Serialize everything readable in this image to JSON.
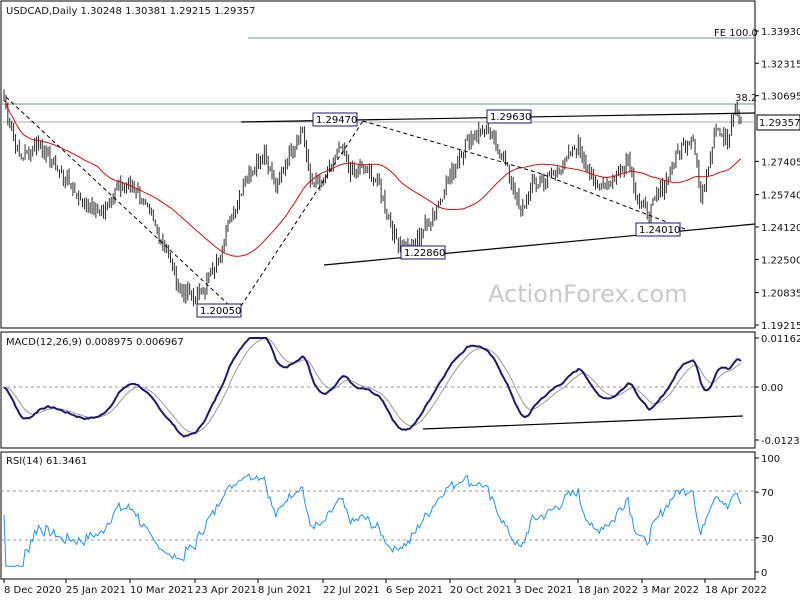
{
  "chart_data": {
    "type": "candlestick",
    "symbol": "USDCAD",
    "timeframe": "Daily",
    "header": "USDCAD,Daily  1.30248 1.30381 1.29215 1.29357",
    "watermark": "ActionForex.com",
    "x_ticks": [
      "8 Dec 2020",
      "25 Jan 2021",
      "10 Mar 2021",
      "23 Apr 2021",
      "8 Jun 2021",
      "22 Jul 2021",
      "6 Sep 2021",
      "20 Oct 2021",
      "3 Dec 2021",
      "18 Jan 2022",
      "3 Mar 2022",
      "18 Apr 2022"
    ],
    "price_panel": {
      "y_ticks": [
        "1.33930",
        "1.32315",
        "1.30695",
        "1.27405",
        "1.25740",
        "1.24120",
        "1.22500",
        "1.20835",
        "1.19215"
      ],
      "current_price": "1.29357",
      "fib_label": "FE 100.0",
      "fib_level": 1.3393,
      "fib_38_label": "38.2",
      "fib_38_level": 1.2995,
      "price_line": 1.2936,
      "annotations": [
        {
          "label": "1.20050",
          "value": 1.2005,
          "date": "Apr 2021"
        },
        {
          "label": "1.29470",
          "value": 1.2947,
          "date": "Jun 2021"
        },
        {
          "label": "1.22860",
          "value": 1.2286,
          "date": "Oct 2021"
        },
        {
          "label": "1.29630",
          "value": 1.2963,
          "date": "Nov 2021"
        },
        {
          "label": "1.24010",
          "value": 1.2401,
          "date": "Mar 2022"
        }
      ],
      "close_anchors": [
        [
          0,
          1.305
        ],
        [
          8,
          1.276
        ],
        [
          18,
          1.283
        ],
        [
          30,
          1.268
        ],
        [
          42,
          1.253
        ],
        [
          50,
          1.248
        ],
        [
          60,
          1.261
        ],
        [
          68,
          1.262
        ],
        [
          76,
          1.247
        ],
        [
          84,
          1.232
        ],
        [
          92,
          1.21
        ],
        [
          100,
          1.205
        ],
        [
          110,
          1.22
        ],
        [
          116,
          1.239
        ],
        [
          126,
          1.265
        ],
        [
          136,
          1.28
        ],
        [
          142,
          1.26
        ],
        [
          150,
          1.28
        ],
        [
          156,
          1.29
        ],
        [
          160,
          1.264
        ],
        [
          166,
          1.262
        ],
        [
          176,
          1.281
        ],
        [
          182,
          1.268
        ],
        [
          188,
          1.271
        ],
        [
          196,
          1.262
        ],
        [
          204,
          1.236
        ],
        [
          212,
          1.23
        ],
        [
          222,
          1.244
        ],
        [
          230,
          1.26
        ],
        [
          242,
          1.285
        ],
        [
          250,
          1.29
        ],
        [
          258,
          1.282
        ],
        [
          264,
          1.267
        ],
        [
          270,
          1.248
        ],
        [
          276,
          1.262
        ],
        [
          284,
          1.265
        ],
        [
          292,
          1.272
        ],
        [
          300,
          1.283
        ],
        [
          308,
          1.262
        ],
        [
          318,
          1.264
        ],
        [
          326,
          1.276
        ],
        [
          330,
          1.258
        ],
        [
          336,
          1.247
        ],
        [
          346,
          1.265
        ],
        [
          352,
          1.279
        ],
        [
          360,
          1.288
        ],
        [
          364,
          1.254
        ],
        [
          372,
          1.293
        ],
        [
          378,
          1.283
        ],
        [
          382,
          1.301
        ],
        [
          385,
          1.2936
        ]
      ]
    },
    "macd_panel": {
      "label": "MACD(12,26,9) 0.008975 0.006967",
      "y_ticks": [
        "0.011629",
        "0.00",
        "-0.012348"
      ]
    },
    "rsi_panel": {
      "label": "RSI(14) 61.3461",
      "y_ticks": [
        "100",
        "70",
        "30",
        "0"
      ]
    }
  }
}
